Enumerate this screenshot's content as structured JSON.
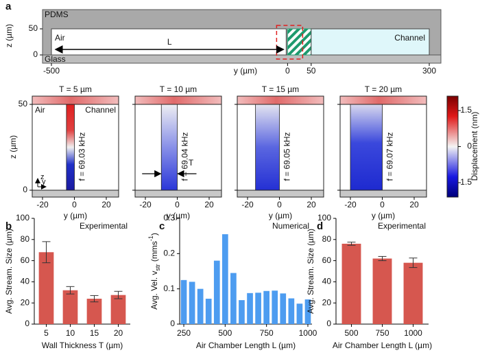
{
  "panel_labels": [
    "a",
    "b",
    "c",
    "d"
  ],
  "schematic": {
    "top_material": "PDMS",
    "bottom_material": "Glass",
    "air_label": "Air",
    "channel_label": "Channel",
    "length_label": "L",
    "z_label": "z (µm)",
    "zticks": [
      50,
      0
    ],
    "y_label": "y (µm)",
    "yticks": [
      -500,
      0,
      50,
      300
    ]
  },
  "simulations": {
    "z_label": "z (µm)",
    "y_label": "y (µm)",
    "zticks": [
      50,
      0
    ],
    "yticks": [
      -20,
      0,
      20
    ],
    "air_label": "Air",
    "channel_label": "Channel",
    "axis_z": "z",
    "axis_y": "y",
    "thickness_label": "T",
    "panels": [
      {
        "title": "T = 5 µm",
        "thickness": 5,
        "frequency": "f = 69.03 kHz"
      },
      {
        "title": "T = 10 µm",
        "thickness": 10,
        "frequency": "f = 69.04 kHz"
      },
      {
        "title": "T = 15 µm",
        "thickness": 15,
        "frequency": "f = 69.05 kHz"
      },
      {
        "title": "T = 20 µm",
        "thickness": 20,
        "frequency": "f = 69.07 kHz"
      }
    ]
  },
  "colorbar": {
    "label": "Displacement (nm)",
    "clim": [
      -2.1,
      2.1
    ],
    "ticks": [
      1.5,
      0,
      -1.5
    ]
  },
  "chart_data": [
    {
      "type": "bar",
      "annotation": "Experimental",
      "xlabel": "Wall Thickness T (µm)",
      "ylabel": "Avg. Stream. Size (µm)",
      "categories": [
        "5",
        "10",
        "15",
        "20"
      ],
      "values": [
        68,
        32,
        24,
        27.5
      ],
      "errors": [
        10,
        3.5,
        3,
        3.5
      ],
      "color": "#d6574f",
      "ylim": [
        0,
        100
      ],
      "yticks": [
        0,
        20,
        40,
        60,
        80,
        100
      ]
    },
    {
      "type": "bar",
      "annotation": "Numerical",
      "xlabel": "Air Chamber Length L (µm)",
      "ylabel": [
        "Avg. Vel. v",
        "str",
        " (mms",
        "-1",
        ")"
      ],
      "x": [
        250,
        300,
        350,
        400,
        450,
        500,
        550,
        600,
        650,
        700,
        750,
        800,
        850,
        900,
        950,
        1000
      ],
      "values": [
        0.125,
        0.12,
        0.1,
        0.072,
        0.18,
        0.255,
        0.145,
        0.068,
        0.088,
        0.089,
        0.094,
        0.095,
        0.087,
        0.073,
        0.058,
        0.07
      ],
      "color": "#4d9cf0",
      "xlim": [
        225,
        1025
      ],
      "xticks": [
        250,
        500,
        750,
        1000
      ],
      "ylim": [
        0,
        0.3
      ],
      "yticks": [
        0,
        0.1,
        0.2,
        0.3
      ]
    },
    {
      "type": "bar",
      "annotation": "Experimental",
      "xlabel": "Air Chamber Length L (µm)",
      "ylabel": "Avg. Stream. Size (µm)",
      "categories": [
        "500",
        "750",
        "1000"
      ],
      "values": [
        76,
        62,
        58
      ],
      "errors": [
        1.5,
        2,
        4.5
      ],
      "color": "#d6574f",
      "ylim": [
        0,
        100
      ],
      "yticks": [
        0,
        20,
        40,
        60,
        80,
        100
      ]
    }
  ]
}
